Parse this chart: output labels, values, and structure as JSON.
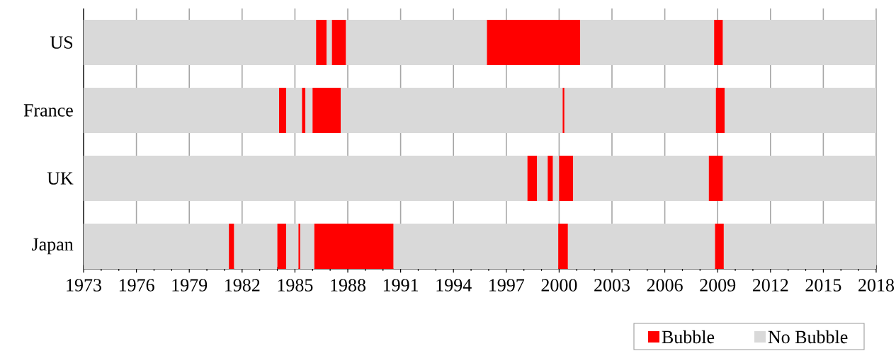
{
  "chart_data": {
    "type": "bar",
    "orientation": "horizontal",
    "categories": [
      "US",
      "France",
      "UK",
      "Japan"
    ],
    "xlim": [
      1973,
      2018
    ],
    "xticks": [
      1973,
      1976,
      1979,
      1982,
      1985,
      1988,
      1991,
      1994,
      1997,
      2000,
      2003,
      2006,
      2009,
      2012,
      2015,
      2018
    ],
    "grid": "x",
    "legend": "bottom right",
    "series": [
      {
        "name": "No Bubble",
        "color": "#d9d9d9",
        "base": [
          1973,
          1973,
          1973,
          1973
        ],
        "values": [
          13.2,
          11.1,
          25.2,
          8.25
        ]
      },
      {
        "name": "Bubble",
        "color": "#ff0000",
        "base": [
          1986.2,
          1984.1,
          1998.2,
          1981.25
        ],
        "values": [
          0.6,
          0.4,
          0.55,
          0.3
        ]
      },
      {
        "color": "#d9d9d9",
        "base": [
          1986.8,
          1984.5,
          1998.75,
          1981.55
        ],
        "values": [
          0.3,
          0.9,
          0.6,
          2.45
        ]
      },
      {
        "color": "#ff0000",
        "base": [
          1987.1,
          1985.4,
          1999.35,
          1984.0
        ],
        "values": [
          0.8,
          0.2,
          0.3,
          0.5
        ]
      },
      {
        "color": "#d9d9d9",
        "base": [
          1987.9,
          1985.6,
          1999.65,
          1984.5
        ],
        "values": [
          8.0,
          0.4,
          0.35,
          0.7
        ]
      },
      {
        "color": "#ff0000",
        "base": [
          1995.9,
          1986.0,
          2000.0,
          1985.2
        ],
        "values": [
          5.3,
          1.6,
          0.8,
          0.1
        ]
      },
      {
        "color": "#d9d9d9",
        "base": [
          2001.2,
          1987.6,
          2000.8,
          1985.3
        ],
        "values": [
          7.6,
          12.6,
          7.7,
          0.8
        ]
      },
      {
        "color": "#ff0000",
        "base": [
          2008.8,
          2000.2,
          2008.5,
          1986.1
        ],
        "values": [
          0.5,
          0.1,
          0.8,
          4.5
        ]
      },
      {
        "color": "#d9d9d9",
        "base": [
          2009.3,
          2000.3,
          2009.3,
          1990.6
        ],
        "values": [
          8.7,
          8.6,
          8.7,
          9.35
        ]
      },
      {
        "color": "#ff0000",
        "base": [
          null,
          2008.9,
          null,
          1999.95
        ],
        "values": [
          null,
          0.5,
          null,
          0.55
        ]
      },
      {
        "color": "#d9d9d9",
        "base": [
          null,
          2009.4,
          null,
          2000.5
        ],
        "values": [
          null,
          8.6,
          null,
          8.35
        ]
      },
      {
        "color": "#ff0000",
        "base": [
          null,
          null,
          null,
          2008.85
        ],
        "values": [
          null,
          null,
          null,
          0.5
        ]
      },
      {
        "color": "#d9d9d9",
        "base": [
          null,
          null,
          null,
          2009.35
        ],
        "values": [
          null,
          null,
          null,
          8.65
        ]
      }
    ]
  }
}
